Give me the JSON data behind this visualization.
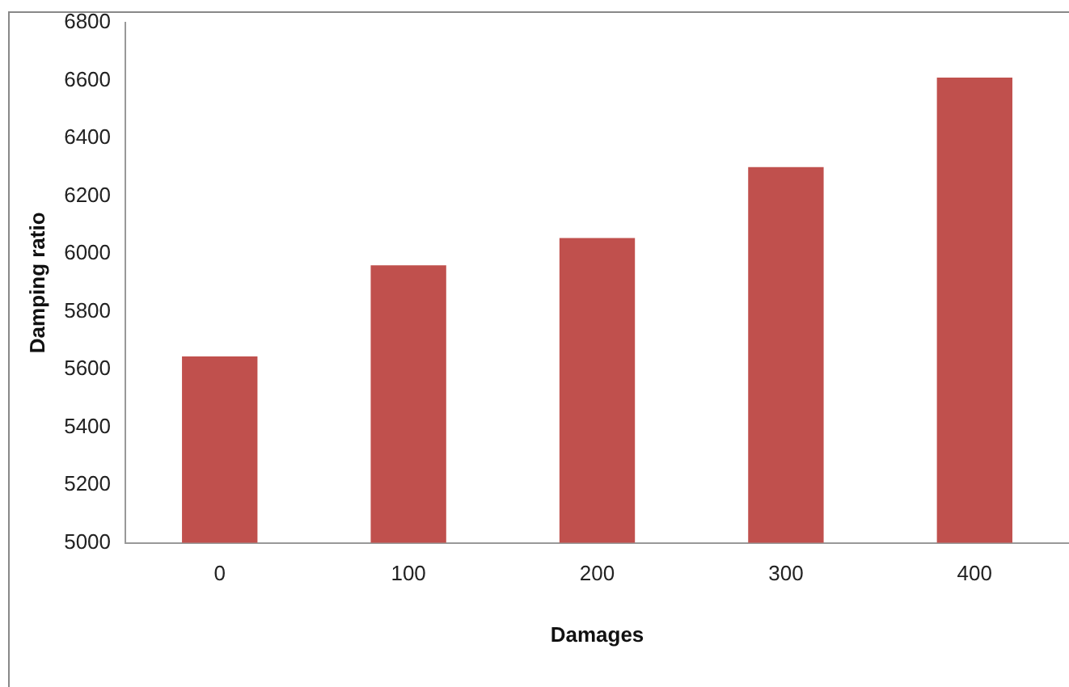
{
  "chart_data": {
    "type": "bar",
    "xlabel": "Damages",
    "ylabel": "Damping ratio",
    "categories": [
      "0",
      "100",
      "200",
      "300",
      "400"
    ],
    "values": [
      5645,
      5960,
      6055,
      6300,
      6610
    ],
    "color": "#c0504d",
    "ylim": [
      5000,
      6800
    ],
    "yticks": [
      5000,
      5200,
      5400,
      5600,
      5800,
      6000,
      6200,
      6400,
      6600,
      6800
    ],
    "grid": false,
    "legend": false
  }
}
